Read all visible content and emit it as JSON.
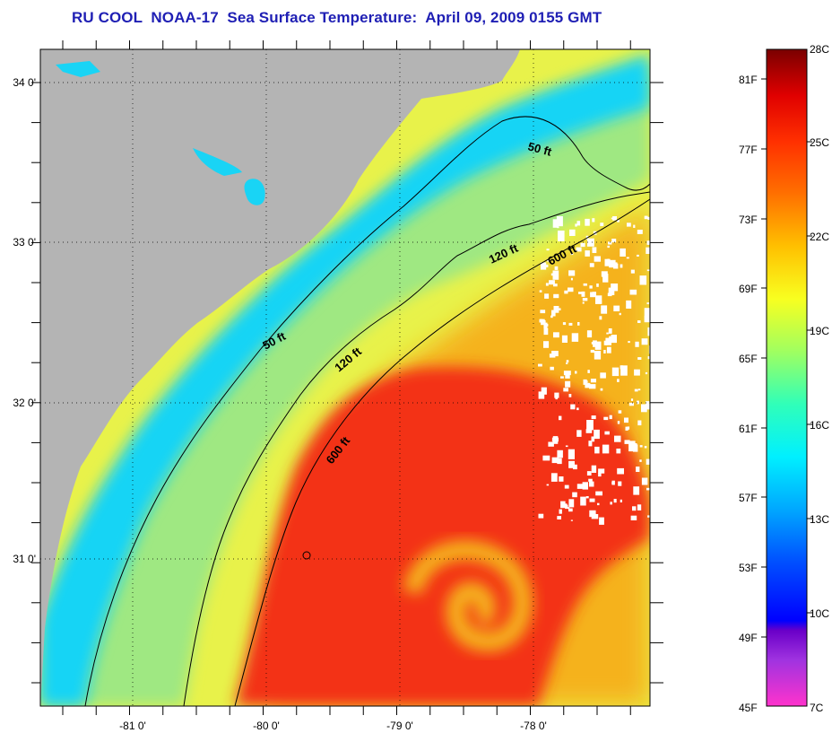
{
  "title": "RU COOL  NOAA-17  Sea Surface Temperature:  April 09, 2009 0155 GMT",
  "map": {
    "x_ticks": [
      "-81 0'",
      "-80 0'",
      "-79 0'",
      "-78 0'"
    ],
    "y_ticks": [
      "34 0'",
      "33 0'",
      "32 0'",
      "31 0'"
    ],
    "contours": {
      "c50_upper": "50 ft",
      "c50_lower": "50 ft",
      "c120_upper": "120 ft",
      "c120_lower": "120 ft",
      "c600_upper": "600 ft",
      "c600_lower": "600 ft"
    },
    "colors": {
      "land": "#b4b4b4",
      "inshore": "#19d4f5",
      "shelf": "#9fe882",
      "midshelf": "#e8f24a",
      "slope": "#f5b21e",
      "gulf_stream": "#f33016",
      "cloud": "#ffffff"
    }
  },
  "colorbar": {
    "f_labels": [
      "81F",
      "77F",
      "73F",
      "69F",
      "65F",
      "61F",
      "57F",
      "53F",
      "49F",
      "45F"
    ],
    "c_labels": [
      "28C",
      "25C",
      "22C",
      "19C",
      "16C",
      "13C",
      "10C",
      "7C"
    ]
  }
}
